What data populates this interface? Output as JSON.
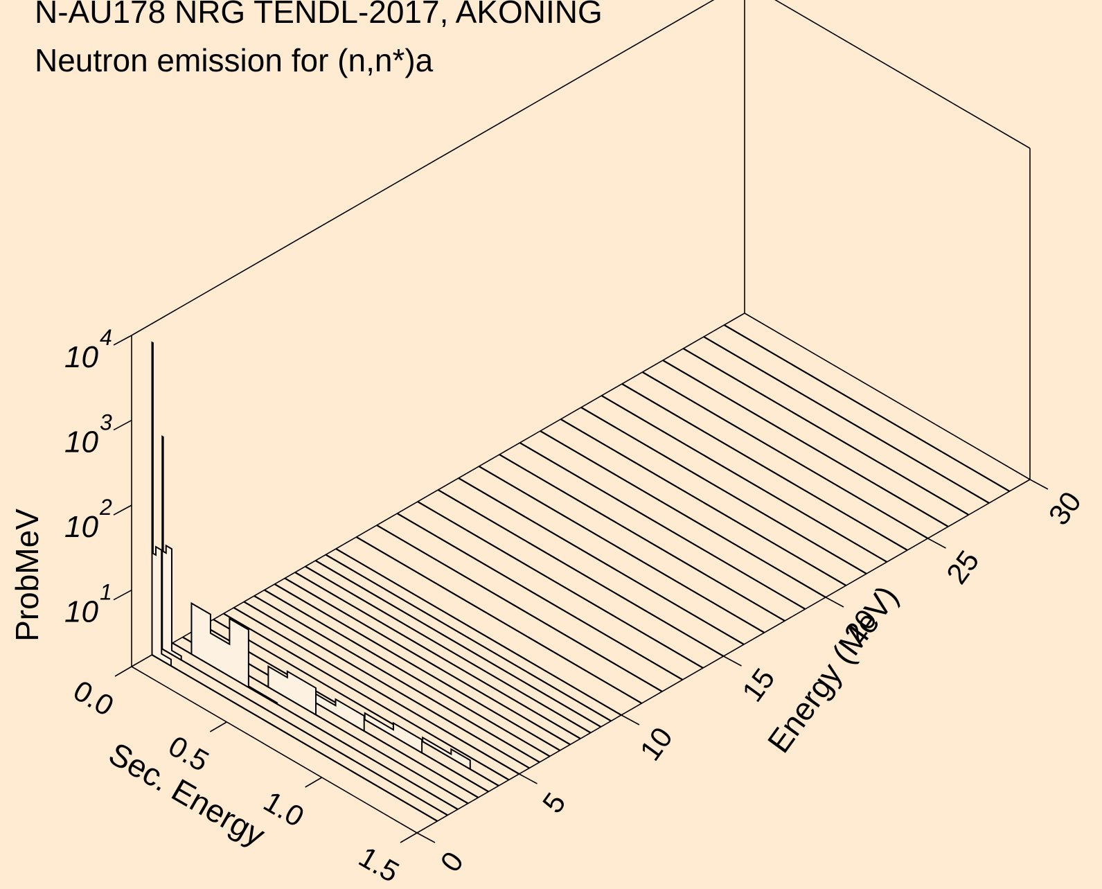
{
  "chart_data": {
    "type": "3d-waterfall-histogram",
    "title": "N-AU178 NRG TENDL-2017, AKONING",
    "subtitle": "Neutron emission for (n,n*)a",
    "zlabel": "ProbMeV",
    "xlabel": "Sec. Energy",
    "ylabel": "Energy (MeV)",
    "z_scale": "log",
    "x_ticks": [
      "0.0",
      "0.5",
      "1.0",
      "1.5"
    ],
    "y_ticks": [
      "0",
      "5",
      "10",
      "15",
      "20",
      "25",
      "30"
    ],
    "z_ticks": [
      {
        "base": "10",
        "exp": "1"
      },
      {
        "base": "10",
        "exp": "2"
      },
      {
        "base": "10",
        "exp": "3"
      },
      {
        "base": "10",
        "exp": "4"
      }
    ],
    "xlim": [
      0,
      1.5
    ],
    "ylim": [
      0,
      30
    ],
    "zlim_log10": [
      0.1,
      4
    ],
    "incident_energies": [
      1.0,
      1.5,
      2.0,
      2.5,
      3.0,
      3.5,
      4.0,
      4.5,
      5.0,
      5.5,
      6.0,
      6.5,
      7.0,
      7.5,
      8.0,
      8.5,
      9.0,
      9.5,
      10,
      11,
      12,
      13,
      14,
      15,
      16,
      17,
      18,
      19,
      20,
      21,
      22,
      23,
      24,
      25,
      26,
      27,
      28,
      29
    ],
    "spectra": [
      {
        "incident_energy": 1.0,
        "bins": [
          {
            "x0": 0.0,
            "x1": 0.005,
            "value": 6000
          },
          {
            "x0": 0.005,
            "x1": 0.02,
            "value": 20
          },
          {
            "x0": 0.02,
            "x1": 0.05,
            "value": 25
          },
          {
            "x0": 0.05,
            "x1": 0.1,
            "value": 1.5
          }
        ]
      },
      {
        "incident_energy": 1.5,
        "bins": [
          {
            "x0": 0.0,
            "x1": 0.005,
            "value": 400
          },
          {
            "x0": 0.005,
            "x1": 0.02,
            "value": 18
          },
          {
            "x0": 0.02,
            "x1": 0.05,
            "value": 22
          },
          {
            "x0": 0.05,
            "x1": 0.1,
            "value": 1.4
          }
        ]
      },
      {
        "incident_energy": 2.0,
        "bins": [
          {
            "x0": 0.1,
            "x1": 0.2,
            "value": 5
          },
          {
            "x0": 0.2,
            "x1": 0.3,
            "value": 3
          },
          {
            "x0": 0.3,
            "x1": 0.4,
            "value": 6
          },
          {
            "x0": 0.4,
            "x1": 0.55,
            "value": 1.3
          }
        ]
      },
      {
        "incident_energy": 2.5,
        "bins": [
          {
            "x0": 0.45,
            "x1": 0.55,
            "value": 2.2
          },
          {
            "x0": 0.55,
            "x1": 0.7,
            "value": 2.6
          }
        ]
      },
      {
        "incident_energy": 3.0,
        "bins": [
          {
            "x0": 0.55,
            "x1": 0.75,
            "value": 1.6
          },
          {
            "x0": 0.75,
            "x1": 0.9,
            "value": 1.9
          }
        ]
      },
      {
        "incident_energy": 3.5,
        "bins": [
          {
            "x0": 0.85,
            "x1": 1.0,
            "value": 1.5
          },
          {
            "x0": 1.0,
            "x1": 1.15,
            "value": 1.8
          }
        ]
      },
      {
        "incident_energy": 4.0,
        "bins": [
          {
            "x0": 1.1,
            "x1": 1.25,
            "value": 1.4
          },
          {
            "x0": 1.25,
            "x1": 1.35,
            "value": 1.6
          }
        ]
      }
    ]
  }
}
